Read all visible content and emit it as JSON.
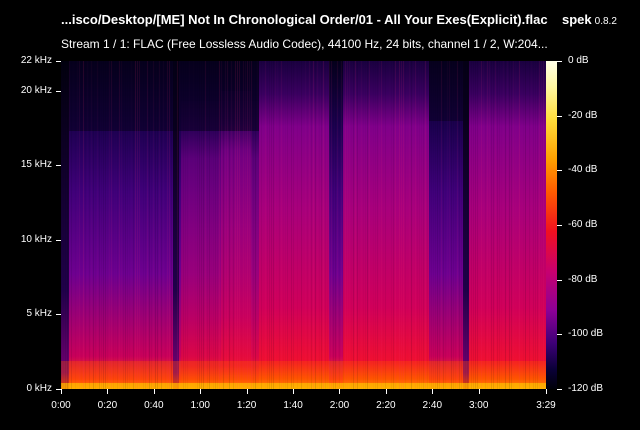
{
  "window": {
    "file_title": "...isco/Desktop/[ME] Not In Chronological Order/01 - All Your Exes(Explicit).flac",
    "app_name": "spek",
    "app_version": "0.8.2",
    "stream_info": "Stream 1 / 1: FLAC (Free Lossless Audio Codec), 44100 Hz, 24 bits, channel 1 / 2, W:204..."
  },
  "spectrogram": {
    "frequency_labels": [
      "22 kHz",
      "20 kHz",
      "15 kHz",
      "10 kHz",
      "5 kHz",
      "0 kHz"
    ],
    "frequency_values_khz": [
      22,
      20,
      15,
      10,
      5,
      0
    ],
    "time_labels": [
      "0:00",
      "0:20",
      "0:40",
      "1:00",
      "1:20",
      "1:40",
      "2:00",
      "2:20",
      "2:40",
      "3:00",
      "3:29"
    ],
    "time_values_s": [
      0,
      20,
      40,
      60,
      80,
      100,
      120,
      140,
      160,
      180,
      209
    ]
  },
  "colorbar": {
    "labels": [
      "0 dB",
      "-20 dB",
      "-40 dB",
      "-60 dB",
      "-80 dB",
      "-100 dB",
      "-120 dB"
    ],
    "values_db": [
      0,
      -20,
      -40,
      -60,
      -80,
      -100,
      -120
    ]
  }
}
